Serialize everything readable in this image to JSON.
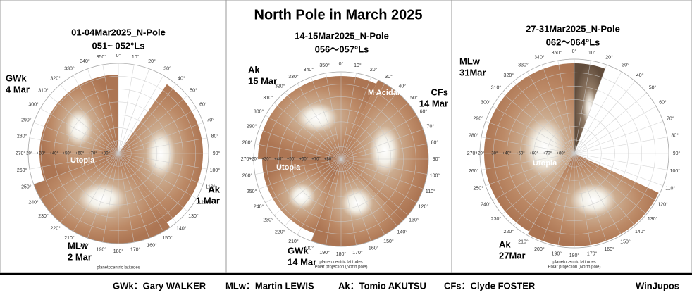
{
  "title": "North Pole in March 2025",
  "grid": {
    "longitude_labels": [
      "0°",
      "10°",
      "20°",
      "30°",
      "40°",
      "50°",
      "60°",
      "70°",
      "80°",
      "90°",
      "100°",
      "110°",
      "120°",
      "130°",
      "140°",
      "150°",
      "160°",
      "170°",
      "180°",
      "190°",
      "200°",
      "210°",
      "220°",
      "230°",
      "240°",
      "250°",
      "260°",
      "270°",
      "280°",
      "290°",
      "300°",
      "310°",
      "320°",
      "330°",
      "340°",
      "350°"
    ],
    "latitude_labels": [
      "+20°",
      "+30°",
      "+40°",
      "+50°",
      "+60°",
      "+70°",
      "+80°"
    ]
  },
  "panels": [
    {
      "title": "01-04Mar2025_N-Pole",
      "ls": "051~ 052°Ls",
      "observers": [
        {
          "name": "GWk",
          "date": "4 Mar"
        },
        {
          "name": "Ak",
          "date": "1 Mar"
        },
        {
          "name": "MLw",
          "date": "2 Mar"
        }
      ],
      "features": [
        "Utopia"
      ],
      "footnote": [
        "planetocentric latitudes"
      ]
    },
    {
      "title": "14-15Mar2025_N-Pole",
      "ls": "056～057°Ls",
      "observers": [
        {
          "name": "Ak",
          "date": "15 Mar"
        },
        {
          "name": "CFs",
          "date": "14 Mar"
        },
        {
          "name": "GWk",
          "date": "14 Mar"
        }
      ],
      "features": [
        "Utopia",
        "M Acidalium"
      ],
      "footnote": [
        "planetocentric latitudes",
        "Polar projection (North pole)"
      ]
    },
    {
      "title": "27-31Mar2025_N-Pole",
      "ls": "062～064°Ls",
      "observers": [
        {
          "name": "MLw",
          "date": "31Mar"
        },
        {
          "name": "Ak",
          "date": "27Mar"
        }
      ],
      "features": [
        "Utopia"
      ],
      "footnote": [
        "planetocentric latitudes",
        "Polar projection (North pole)"
      ]
    }
  ],
  "legend": [
    "GWk：Gary WALKER",
    "MLw：Martin LEWIS",
    "Ak：Tomio AKUTSU",
    "CFs：Clyde FOSTER"
  ],
  "software": "WinJupos"
}
